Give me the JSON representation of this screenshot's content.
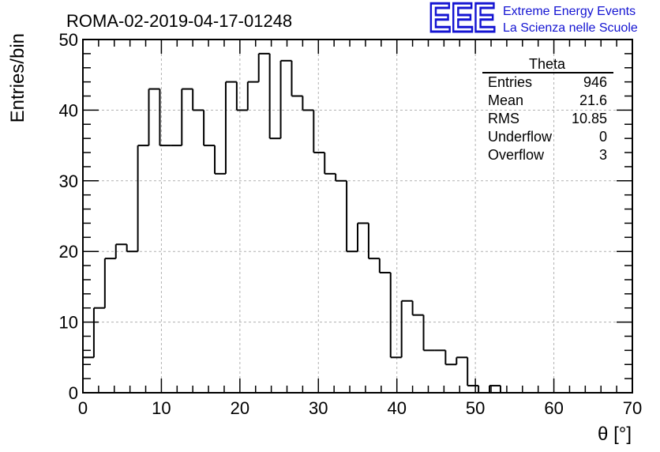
{
  "header": {
    "title": "ROMA-02-2019-04-17-01248",
    "logo_letters": "EEE",
    "logo_line1": "Extreme Energy Events",
    "logo_line2": "La Scienza nelle Scuole",
    "logo_color": "#1414d2"
  },
  "stats": {
    "name": "Theta",
    "rows": [
      {
        "label": "Entries",
        "value": "946"
      },
      {
        "label": "Mean",
        "value": "21.6"
      },
      {
        "label": "RMS",
        "value": "10.85"
      },
      {
        "label": "Underflow",
        "value": "0"
      },
      {
        "label": "Overflow",
        "value": "3"
      }
    ]
  },
  "chart_data": {
    "type": "histogram",
    "title": "ROMA-02-2019-04-17-01248",
    "xlabel": "θ [°]",
    "ylabel": "Entries/bin",
    "xlim": [
      0,
      70
    ],
    "ylim": [
      0,
      50
    ],
    "bin_width": 1.4,
    "x_ticks": [
      0,
      10,
      20,
      30,
      40,
      50,
      60,
      70
    ],
    "y_ticks": [
      0,
      10,
      20,
      30,
      40,
      50
    ],
    "grid": true,
    "legend": "top-right",
    "values": [
      5,
      12,
      19,
      21,
      20,
      35,
      43,
      35,
      35,
      43,
      40,
      35,
      31,
      44,
      40,
      44,
      48,
      36,
      47,
      42,
      40,
      34,
      31,
      30,
      20,
      24,
      19,
      17,
      5,
      13,
      11,
      6,
      6,
      4,
      5,
      1,
      0,
      1,
      0,
      0,
      0,
      0,
      0,
      0,
      0,
      0,
      0,
      0,
      0,
      0
    ]
  }
}
